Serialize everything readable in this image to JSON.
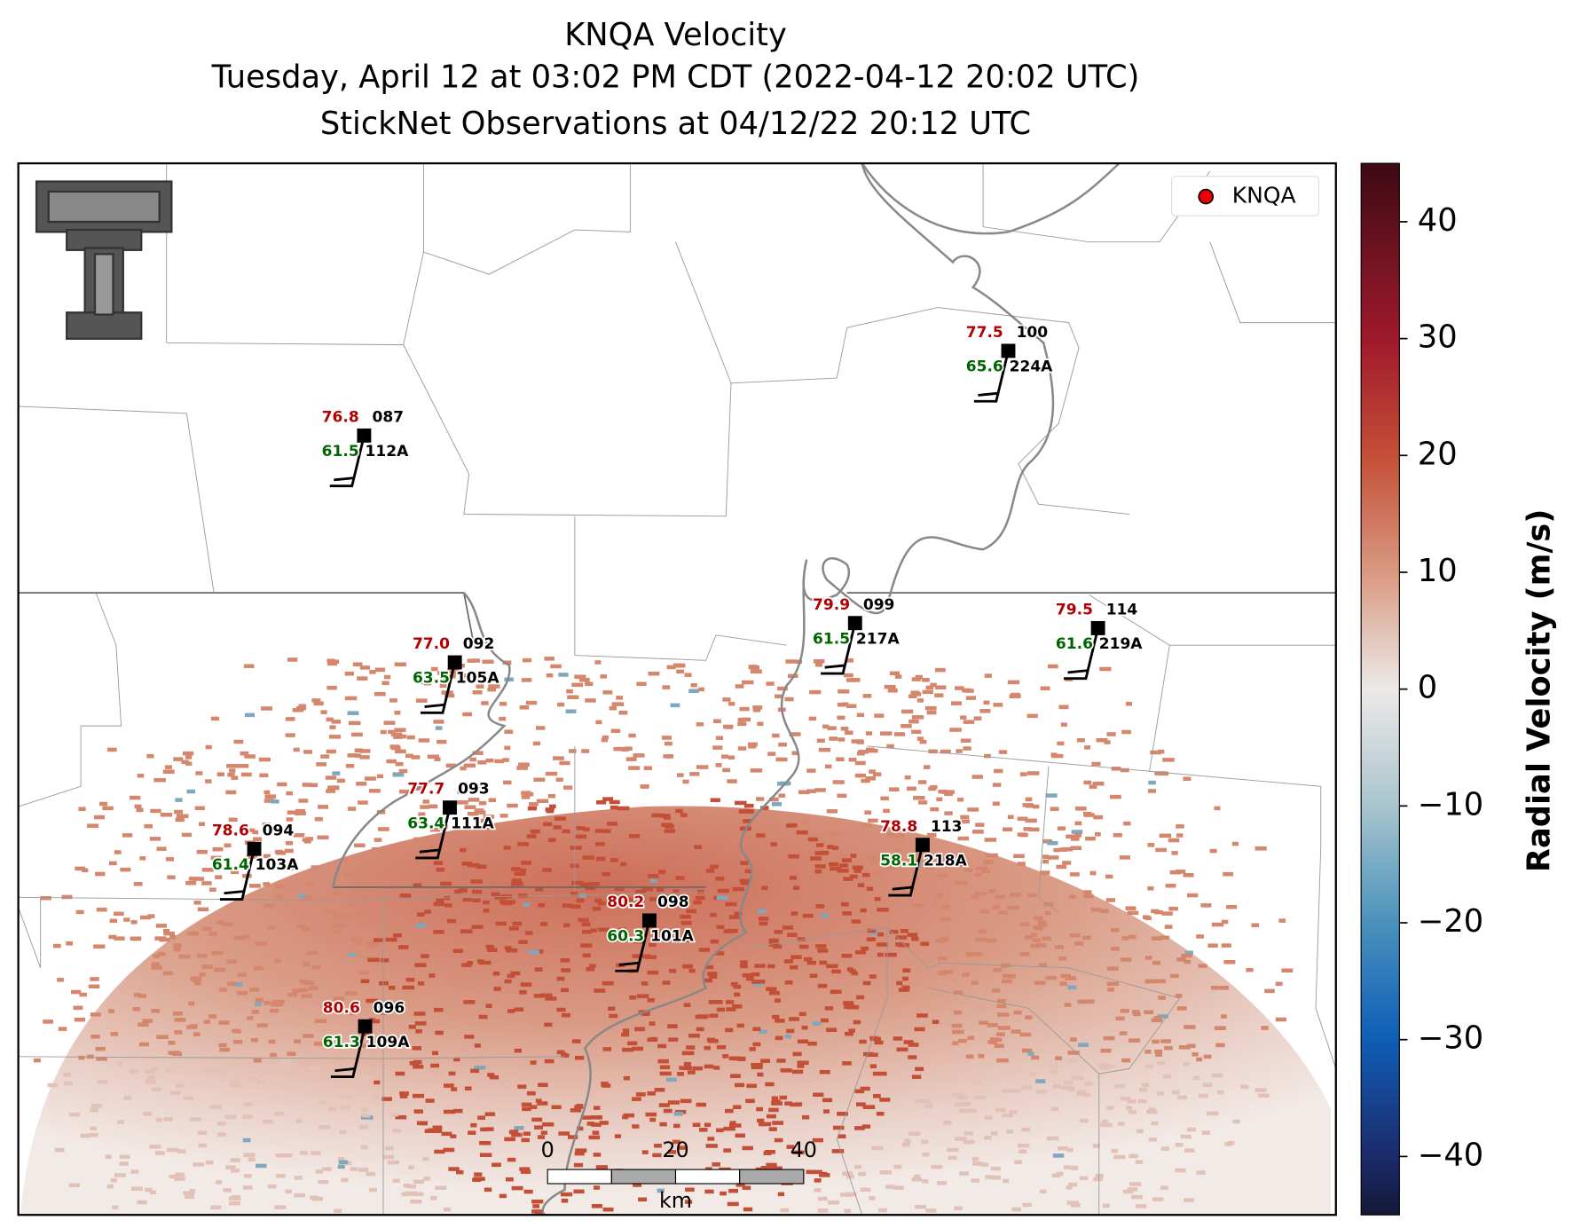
{
  "title": [
    "KNQA Velocity",
    "Tuesday, April 12 at 03:02 PM CDT (2022-04-12 20:02 UTC)",
    "StickNet Observations at 04/12/22 20:12 UTC"
  ],
  "legend": "KNQA",
  "stations": [
    {
      "temperature": "76.8",
      "dewpoint": "61.5",
      "id": "087",
      "probe": "112A"
    },
    {
      "temperature": "77.5",
      "dewpoint": "65.6",
      "id": "100",
      "probe": "224A"
    },
    {
      "temperature": "77.0",
      "dewpoint": "63.5",
      "id": "092",
      "probe": "105A"
    },
    {
      "temperature": "79.9",
      "dewpoint": "61.5",
      "id": "099",
      "probe": "217A"
    },
    {
      "temperature": "79.5",
      "dewpoint": "61.6",
      "id": "114",
      "probe": "219A"
    },
    {
      "temperature": "77.7",
      "dewpoint": "63.4",
      "id": "093",
      "probe": "111A"
    },
    {
      "temperature": "78.6",
      "dewpoint": "61.4",
      "id": "094",
      "probe": "103A"
    },
    {
      "temperature": "78.8",
      "dewpoint": "58.1",
      "id": "113",
      "probe": "218A"
    },
    {
      "temperature": "80.2",
      "dewpoint": "60.3",
      "id": "098",
      "probe": "101A"
    },
    {
      "temperature": "80.6",
      "dewpoint": "61.3",
      "id": "096",
      "probe": "109A"
    }
  ],
  "scale_bar": {
    "ticks": [
      0,
      20,
      40
    ],
    "unit": "km"
  },
  "colorbar": {
    "label": "Radial Velocity (m/s)",
    "lim": [
      -45,
      45
    ],
    "ticks": [
      {
        "value": -40,
        "label": "−40"
      },
      {
        "value": -30,
        "label": "−30"
      },
      {
        "value": -20,
        "label": "−20"
      },
      {
        "value": -10,
        "label": "−10"
      },
      0,
      10,
      20,
      30,
      40
    ]
  }
}
